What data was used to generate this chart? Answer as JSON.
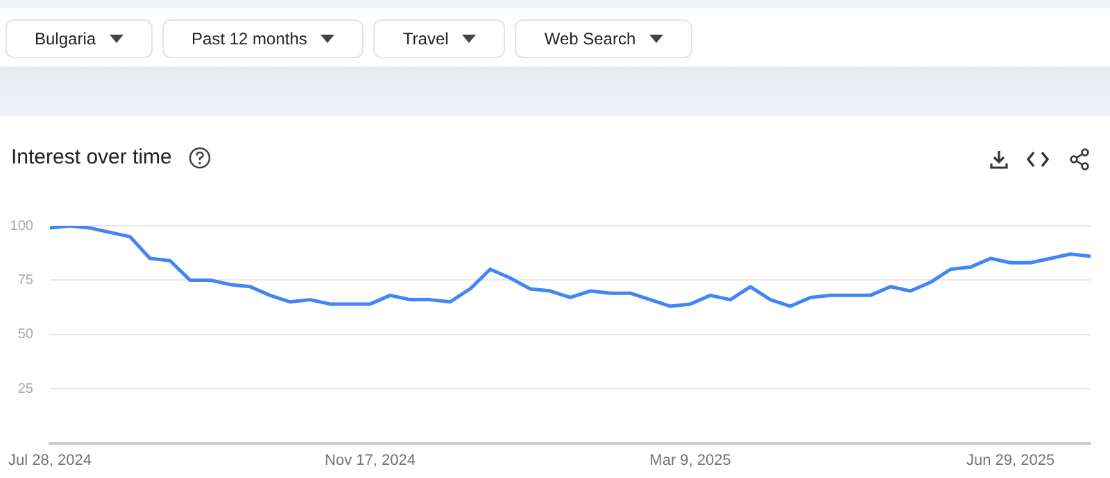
{
  "chart_data": {
    "type": "line",
    "title": "Interest over time",
    "annotations": [
      "Bulgaria",
      "Past 12 months",
      "Travel",
      "Web Search"
    ],
    "categories": [
      "Jul 28, 2024",
      null,
      null,
      null,
      null,
      null,
      null,
      null,
      null,
      null,
      null,
      null,
      null,
      null,
      null,
      null,
      "Nov 17, 2024",
      null,
      null,
      null,
      null,
      null,
      null,
      null,
      null,
      null,
      null,
      null,
      null,
      null,
      null,
      null,
      "Mar 9, 2025",
      null,
      null,
      null,
      null,
      null,
      null,
      null,
      null,
      null,
      null,
      null,
      null,
      null,
      null,
      null,
      "Jun 29, 2025",
      null,
      null,
      null,
      null
    ],
    "series": [
      {
        "color": "#4285f4",
        "values": [
          99,
          100,
          99,
          97,
          95,
          85,
          84,
          75,
          75,
          73,
          72,
          68,
          65,
          66,
          64,
          64,
          64,
          68,
          66,
          66,
          65,
          71,
          80,
          76,
          71,
          70,
          67,
          70,
          69,
          69,
          66,
          63,
          64,
          68,
          66,
          72,
          66,
          63,
          67,
          68,
          68,
          68,
          72,
          70,
          74,
          80,
          81,
          85,
          83,
          83,
          85,
          87,
          86
        ]
      }
    ],
    "ylim": [
      0,
      100
    ],
    "yticks": [
      {
        "value": 0,
        "label": null
      },
      25,
      50,
      75,
      100
    ],
    "grid": "y",
    "legend": false,
    "marker": "none",
    "line_style": "solid"
  }
}
